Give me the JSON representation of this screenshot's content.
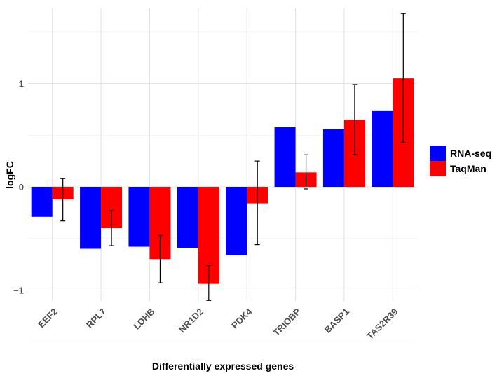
{
  "chart_data": {
    "type": "bar",
    "title": "",
    "xlabel": "Differentially expressed genes",
    "ylabel": "logFC",
    "categories": [
      "EEF2",
      "RPL7",
      "LDHB",
      "NR1D2",
      "PDK4",
      "TRIOBP",
      "BASP1",
      "TAS2R39"
    ],
    "series": [
      {
        "name": "RNA-seq",
        "color": "#0000ff",
        "values": [
          -0.29,
          -0.6,
          -0.58,
          -0.59,
          -0.66,
          0.58,
          0.56,
          0.74
        ]
      },
      {
        "name": "TaqMan",
        "color": "#ff0000",
        "values": [
          -0.12,
          -0.4,
          -0.7,
          -0.94,
          -0.16,
          0.14,
          0.65,
          1.05
        ],
        "error_low": [
          -0.33,
          -0.57,
          -0.93,
          -1.1,
          -0.56,
          -0.02,
          0.31,
          0.43
        ],
        "error_high": [
          0.08,
          -0.23,
          -0.47,
          -0.76,
          0.25,
          0.31,
          0.99,
          1.68
        ]
      }
    ],
    "ylim": [
      -1.1,
      1.7
    ],
    "yticks": [
      -1,
      0,
      1
    ],
    "ytick_labels": [
      "−1",
      "0",
      "1"
    ],
    "grid": true,
    "legend_position": "right"
  }
}
